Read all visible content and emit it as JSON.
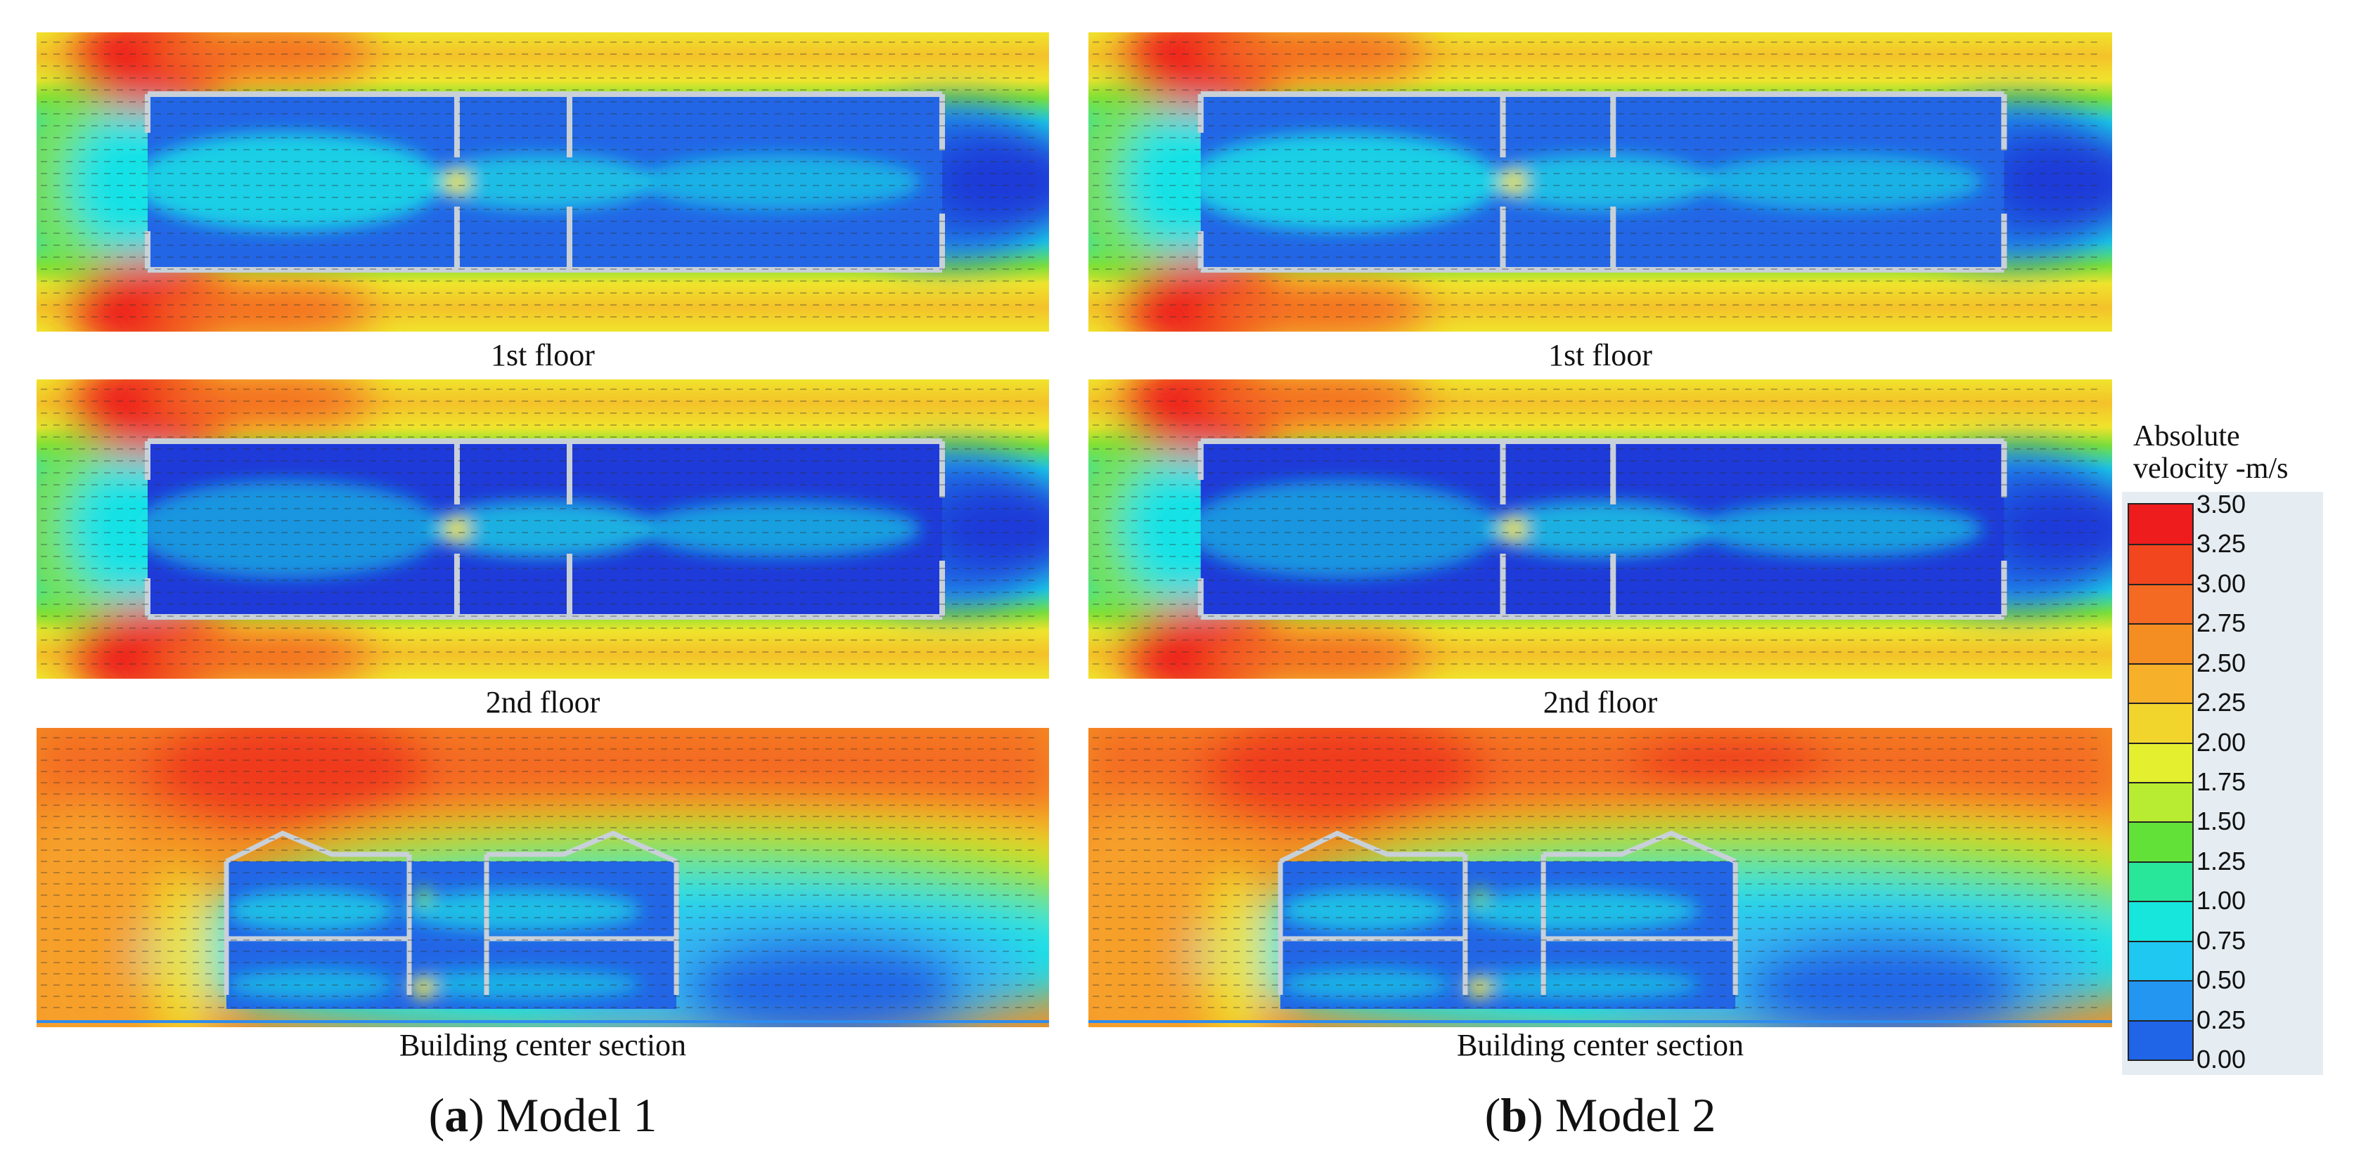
{
  "figure": {
    "models": [
      {
        "id_letter": "a",
        "caption": "Model 1",
        "panels": [
          {
            "caption": "1st floor",
            "kind": "plan"
          },
          {
            "caption": "2nd floor",
            "kind": "plan"
          },
          {
            "caption": "Building center section",
            "kind": "section"
          }
        ]
      },
      {
        "id_letter": "b",
        "caption": "Model 2",
        "panels": [
          {
            "caption": "1st floor",
            "kind": "plan"
          },
          {
            "caption": "2nd floor",
            "kind": "plan"
          },
          {
            "caption": "Building center section",
            "kind": "section"
          }
        ]
      }
    ],
    "legend": {
      "title_line1": "Absolute",
      "title_line2": "velocity -m/s",
      "ticks": [
        "3.50",
        "3.25",
        "3.00",
        "2.75",
        "2.50",
        "2.25",
        "2.00",
        "1.75",
        "1.50",
        "1.25",
        "1.00",
        "0.75",
        "0.50",
        "0.25",
        "0.00"
      ],
      "colors": [
        "#ee1c1c",
        "#f2461e",
        "#f46a22",
        "#f48e22",
        "#f6b02a",
        "#f2d52c",
        "#e4ef30",
        "#b8ec32",
        "#62e238",
        "#28e69a",
        "#16e6dc",
        "#1ec8f0",
        "#2296f0",
        "#2064e8",
        "#1e36d8"
      ]
    },
    "palette": {
      "red": "#ee1c1c",
      "orange": "#f48e22",
      "yellow": "#f0e42c",
      "green": "#7ee234",
      "cyan": "#18e2e6",
      "lightblue": "#36b8f2",
      "blue": "#2266e6",
      "darkblue": "#1e3ad8",
      "wall": "#c8d0d8"
    }
  }
}
